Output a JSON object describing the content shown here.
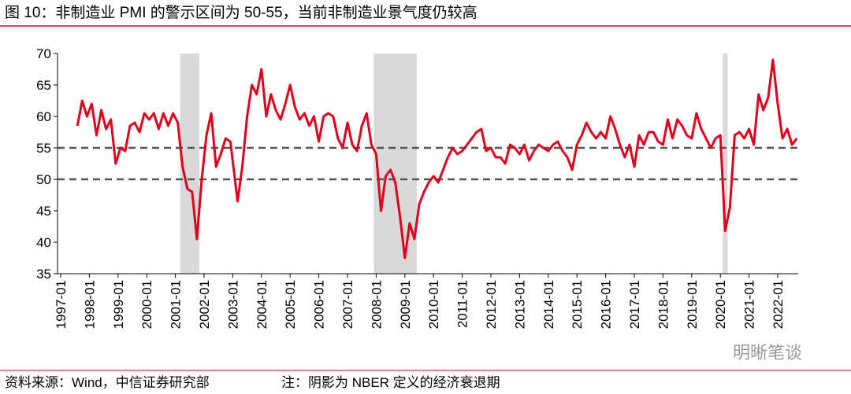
{
  "chart_data": {
    "type": "line",
    "title": "图 10：非制造业 PMI 的警示区间为 50-55，当前非制造业景气度仍较高",
    "source": "资料来源：Wind，中信证券研究部",
    "note": "注：阴影为 NBER 定义的经济衰退期",
    "watermark": "明晰笔谈",
    "color": "#e0001b",
    "ylim": [
      35,
      70
    ],
    "yticks": [
      35,
      40,
      45,
      50,
      55,
      60,
      65,
      70
    ],
    "xticks": [
      "1997-01",
      "1998-01",
      "1999-01",
      "2000-01",
      "2001-01",
      "2002-01",
      "2003-01",
      "2004-01",
      "2005-01",
      "2006-01",
      "2007-01",
      "2008-01",
      "2009-01",
      "2010-01",
      "2011-01",
      "2012-01",
      "2013-01",
      "2014-01",
      "2015-01",
      "2016-01",
      "2017-01",
      "2018-01",
      "2019-01",
      "2020-01",
      "2021-01",
      "2022-01"
    ],
    "shaded": [
      [
        "2001-03",
        "2001-11"
      ],
      [
        "2007-12",
        "2009-06"
      ],
      [
        "2020-02",
        "2020-04"
      ]
    ],
    "hlines": [
      55,
      50
    ],
    "x": [
      "1997-08",
      "1997-10",
      "1997-12",
      "1998-02",
      "1998-04",
      "1998-06",
      "1998-08",
      "1998-10",
      "1998-12",
      "1999-02",
      "1999-04",
      "1999-06",
      "1999-08",
      "1999-10",
      "1999-12",
      "2000-02",
      "2000-04",
      "2000-06",
      "2000-08",
      "2000-10",
      "2000-12",
      "2001-02",
      "2001-04",
      "2001-06",
      "2001-08",
      "2001-10",
      "2001-12",
      "2002-02",
      "2002-04",
      "2002-06",
      "2002-08",
      "2002-10",
      "2002-12",
      "2003-03",
      "2003-05",
      "2003-07",
      "2003-09",
      "2003-11",
      "2004-01",
      "2004-03",
      "2004-05",
      "2004-07",
      "2004-09",
      "2004-11",
      "2005-01",
      "2005-03",
      "2005-05",
      "2005-07",
      "2005-09",
      "2005-11",
      "2006-01",
      "2006-03",
      "2006-05",
      "2006-07",
      "2006-09",
      "2006-11",
      "2007-01",
      "2007-03",
      "2007-05",
      "2007-07",
      "2007-09",
      "2007-11",
      "2008-01",
      "2008-03",
      "2008-05",
      "2008-07",
      "2008-09",
      "2008-11",
      "2009-01",
      "2009-03",
      "2009-05",
      "2009-07",
      "2009-09",
      "2009-11",
      "2010-01",
      "2010-03",
      "2010-05",
      "2010-07",
      "2010-09",
      "2010-11",
      "2011-01",
      "2011-03",
      "2011-05",
      "2011-07",
      "2011-09",
      "2011-11",
      "2012-01",
      "2012-03",
      "2012-05",
      "2012-07",
      "2012-09",
      "2012-11",
      "2013-01",
      "2013-03",
      "2013-05",
      "2013-07",
      "2013-09",
      "2013-11",
      "2014-01",
      "2014-03",
      "2014-05",
      "2014-07",
      "2014-09",
      "2014-11",
      "2015-01",
      "2015-03",
      "2015-05",
      "2015-07",
      "2015-09",
      "2015-11",
      "2016-01",
      "2016-03",
      "2016-05",
      "2016-07",
      "2016-09",
      "2016-11",
      "2017-01",
      "2017-03",
      "2017-05",
      "2017-07",
      "2017-09",
      "2017-11",
      "2018-01",
      "2018-03",
      "2018-05",
      "2018-07",
      "2018-09",
      "2018-11",
      "2019-01",
      "2019-03",
      "2019-05",
      "2019-07",
      "2019-09",
      "2019-11",
      "2020-01",
      "2020-03",
      "2020-05",
      "2020-07",
      "2020-09",
      "2020-11",
      "2021-01",
      "2021-03",
      "2021-05",
      "2021-07",
      "2021-09",
      "2021-11",
      "2022-01",
      "2022-03",
      "2022-05",
      "2022-07",
      "2022-09"
    ],
    "values": [
      58.5,
      62.5,
      60,
      62,
      57,
      61,
      58,
      59.5,
      52.5,
      55,
      54.5,
      58.5,
      59,
      57.5,
      60.5,
      59.5,
      60.5,
      58,
      60.5,
      58.5,
      60.5,
      59,
      52,
      48.5,
      48,
      40.5,
      50,
      57,
      60.5,
      52,
      54,
      56.5,
      56,
      46.5,
      52,
      60,
      65,
      63.5,
      67.5,
      60,
      63.5,
      61,
      59.5,
      62,
      65,
      61.5,
      59.5,
      60.5,
      58.5,
      60,
      56,
      60,
      60.5,
      60,
      56.5,
      55,
      59,
      55.5,
      54.5,
      58.5,
      60.5,
      55.5,
      54,
      45,
      50.5,
      51.5,
      49.5,
      44,
      37.5,
      43,
      40.5,
      46,
      48,
      49.5,
      50.5,
      49.5,
      51.5,
      53.5,
      55,
      54,
      54.5,
      55.5,
      56.5,
      57.5,
      58,
      54.5,
      55,
      53.5,
      53.5,
      52.5,
      55.5,
      55,
      54,
      55.5,
      53,
      54.5,
      55.5,
      55,
      54.5,
      55.5,
      56,
      54.5,
      53.5,
      51.5,
      55.5,
      57,
      59,
      57.5,
      56.5,
      57.5,
      56.5,
      60,
      58,
      55.5,
      53.5,
      55.5,
      52,
      57,
      55.5,
      57.5,
      57.5,
      56,
      55.5,
      59.5,
      56.5,
      59.5,
      58.5,
      57,
      56.5,
      60.5,
      58,
      56.5,
      55,
      56.5,
      57,
      41.8,
      45.5,
      57,
      57.5,
      56.5,
      58,
      55.5,
      63.5,
      61,
      63,
      69,
      62,
      56.5,
      58,
      55.5,
      56.5
    ]
  }
}
